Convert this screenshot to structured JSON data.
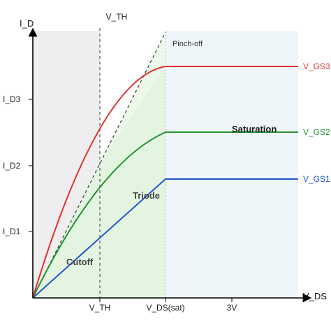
{
  "axes": {
    "y_title": "I_D",
    "x_title": "V_DS",
    "x_ticks": [
      "V_TH",
      "V_DS(sat)",
      "3V"
    ],
    "y_ticks": [
      "I_D1",
      "I_D2",
      "I_D3"
    ]
  },
  "annotations": {
    "vth_top": "V_TH",
    "pinch_off": "Pinch-off"
  },
  "regions": {
    "cutoff": "Cutoff",
    "triode": "Triode",
    "saturation": "Saturation"
  },
  "curves": [
    {
      "label": "V_GS1",
      "color": "#2255cc"
    },
    {
      "label": "V_GS2",
      "color": "#22922e"
    },
    {
      "label": "V_GS3",
      "color": "#e0302a"
    }
  ],
  "colors": {
    "cutoff_fill": "#eeeeee",
    "triode_fill": "#e3f5e1",
    "saturation_fill": "#eef6fa"
  }
}
